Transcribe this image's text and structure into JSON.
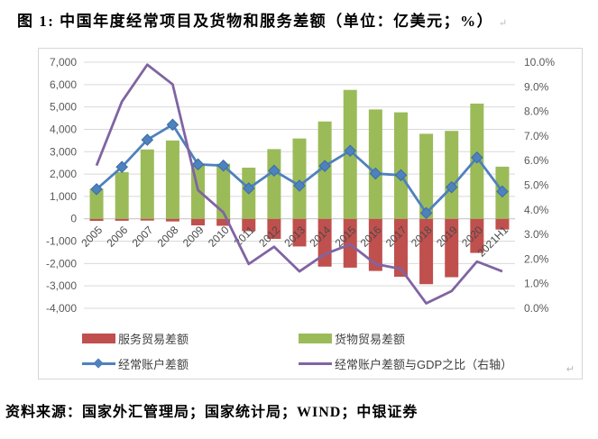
{
  "title": "图 1: 中国年度经常项目及货物和服务差额（单位：亿美元；%）",
  "paragraph_mark": "↵",
  "source_note": "资料来源：国家外汇管理局；国家统计局；WIND；中银证券",
  "chart_data": {
    "type": "bar",
    "subtype": "combo-stacked-bar-with-lines",
    "categories": [
      "2005",
      "2006",
      "2007",
      "2008",
      "2009",
      "2010",
      "2011",
      "2012",
      "2013",
      "2014",
      "2015",
      "2016",
      "2017",
      "2018",
      "2019",
      "2020",
      "2021H1"
    ],
    "series": [
      {
        "name": "服务贸易差额",
        "type": "bar",
        "axis": "left",
        "color": "#C0504D",
        "values": [
          -94,
          -88,
          -79,
          -118,
          -294,
          -312,
          -552,
          -897,
          -1236,
          -2137,
          -2183,
          -2331,
          -2589,
          -2922,
          -2611,
          -1525,
          -480
        ]
      },
      {
        "name": "货物贸易差额",
        "type": "bar",
        "axis": "left",
        "color": "#9BBB59",
        "values": [
          1342,
          2088,
          3100,
          3500,
          2435,
          2462,
          2286,
          3116,
          3590,
          4350,
          5762,
          4889,
          4759,
          3801,
          3930,
          5150,
          2330
        ]
      },
      {
        "name": "经常账户差额",
        "type": "line",
        "marker": "diamond",
        "axis": "left",
        "color": "#4F81BD",
        "marker_edge_color": "#3A6EA5",
        "values": [
          1324,
          2318,
          3532,
          4206,
          2433,
          2378,
          1361,
          2154,
          1482,
          2360,
          3042,
          2022,
          1951,
          255,
          1413,
          2740,
          1220
        ]
      },
      {
        "name": "经常账户差额与GDP之比（右轴）",
        "type": "line",
        "axis": "right",
        "color": "#8064A2",
        "values": [
          5.8,
          8.4,
          9.9,
          9.1,
          4.8,
          3.9,
          1.8,
          2.5,
          1.5,
          2.2,
          2.6,
          1.8,
          1.6,
          0.2,
          0.7,
          1.9,
          1.5
        ]
      }
    ],
    "left_axis": {
      "min": -4000,
      "max": 7000,
      "step": 1000,
      "tick_labels": [
        "7,000",
        "6,000",
        "5,000",
        "4,000",
        "3,000",
        "2,000",
        "1,000",
        "0",
        "-1,000",
        "-2,000",
        "-3,000",
        "-4,000"
      ]
    },
    "right_axis": {
      "min": 0,
      "max": 10,
      "step": 1,
      "tick_labels": [
        "10.0%",
        "9.0%",
        "8.0%",
        "7.0%",
        "6.0%",
        "5.0%",
        "4.0%",
        "3.0%",
        "2.0%",
        "1.0%",
        "0.0%"
      ]
    },
    "grid": true,
    "legend_position": "bottom",
    "gridline_color": "#D9D9D9",
    "zero_line_color": "#BFBFBF",
    "axis_text_color": "#595959",
    "x_labels_rotation_deg": -45
  }
}
